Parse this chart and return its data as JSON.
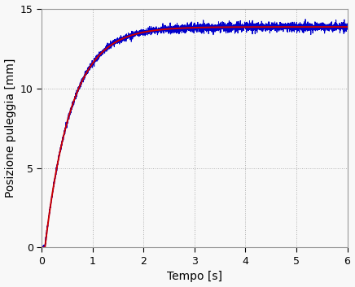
{
  "title": "",
  "xlabel": "Tempo [s]",
  "ylabel": "Posizione puleggia [mm]",
  "xlim": [
    0,
    6
  ],
  "ylim": [
    0,
    15
  ],
  "xticks": [
    0,
    1,
    2,
    3,
    4,
    5,
    6
  ],
  "yticks": [
    0,
    5,
    10,
    15
  ],
  "grid_color": "#b0b0b0",
  "grid_linestyle": ":",
  "background_color": "#f8f8f8",
  "red_line_color": "#cc0000",
  "blue_line_color": "#0000cc",
  "red_linewidth": 1.4,
  "blue_linewidth": 0.7,
  "figsize": [
    4.36,
    3.53
  ],
  "dpi": 100,
  "y_max": 13.85,
  "noise_amp": 0.09,
  "tau": 0.52,
  "t_start": 0.07
}
